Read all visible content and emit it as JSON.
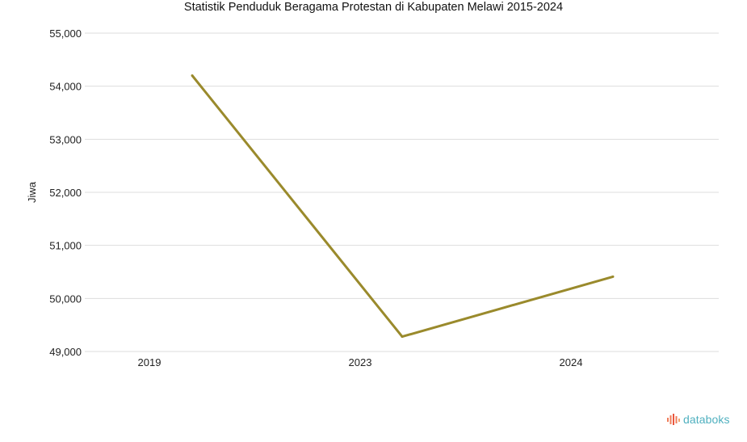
{
  "chart_data": {
    "type": "line",
    "title": "Statistik Penduduk Beragama Protestan di Kabupaten Melawi 2015-2024",
    "xlabel": "",
    "ylabel": "Jiwa",
    "categories": [
      "2019",
      "2023",
      "2024"
    ],
    "series": [
      {
        "values": [
          54200,
          49280,
          50410
        ],
        "color": "#9a8a2c"
      }
    ],
    "ylim": [
      49000,
      55000
    ],
    "yticks": [
      49000,
      50000,
      51000,
      52000,
      53000,
      54000,
      55000
    ],
    "ytick_labels": [
      "49,000",
      "50,000",
      "51,000",
      "52,000",
      "53,000",
      "54,000",
      "55,000"
    ],
    "grid": true,
    "gridline_color": "#dddddd",
    "legend": "none"
  },
  "brand": {
    "name": "databoks",
    "color": "#4fb0bf",
    "icon": "databoks-logo-icon"
  }
}
